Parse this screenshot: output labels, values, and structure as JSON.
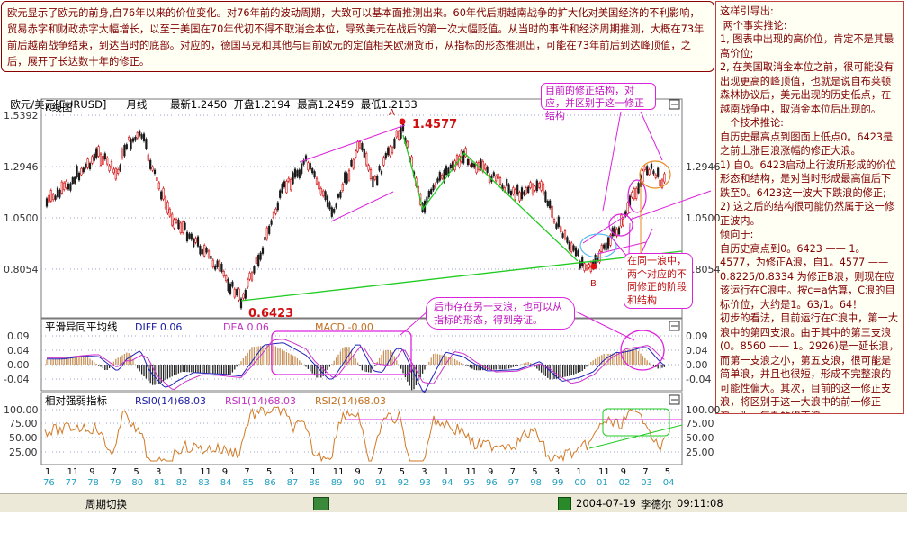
{
  "top_note": "欧元显示了欧元的前身,自76年以来的价位变化。对76年前的波动周期，大致可以基本面推测出来。60年代后期越南战争的扩大化对美国经济的不利影响，贸易赤字和财政赤字大幅增长，以至于美国在70年代初不得不取消金本位，导致美元在战后的第一次大幅贬值。从当时的事件和经济周期推测，大概在73年前后越南战争结束，到达当时的底部。对应的，德国马克和其他与目前欧元的定值相关欧洲货币，从指标的形态推测出，可能在73年前后到达峰顶值，之后，展开了长达数十年的修正。",
  "right_note": "这样引导出:\n 两个事实推论:\n1, 图表中出现的高价位，肯定不是其最高价位;\n2, 在美国取消金本位之前，很可能没有出现更高的峰顶值，也就是说自布莱顿森林协议后，美元出现的历史低点，在越南战争中，取消金本位后出现的。\n一个技术推论:\n自历史最高点到图面上低点0。6423是之前上涨巨浪涨幅的修正大浪。\n1) 自0。6423启动上行波所形成的价位形态和结构，是对当时形成最高值后下跌至0。6423这一波大下跌浪的修正;\n2) 这之后的结构很可能仍然属于这一修正波内。\n倾向于:\n自历史高点到0。6423 —— 1。4577，为修正A浪，自1。4577 —— 0.8225/0.8334 为修正B浪，则现在应该运行在C浪中。按c=a估算，C浪的目标价位，大约是1。63/1。64！\n初步的看法，目前运行在C浪中，第一大浪中的第四支浪。由于其中的第三支浪(0。8560 —— 1。2926)是一延长浪，而第一支浪之小，第五支浪，很可能是简单浪，并且也很短，形成不完整浪的可能性偏大。其次，目前的这一修正支浪，将区别于这一大浪中的前一修正浪，为一复杂的修正浪。",
  "info": {
    "symbol": "欧元/美元[EURUSD]",
    "period": "月线",
    "latest": "最新1.2450",
    "open": "开盘1.2194",
    "high": "最高1.2459",
    "low": "最低1.2133"
  },
  "kline_title": "K线图",
  "price_levels": [
    "1.5392",
    "1.2946",
    "1.0500",
    "0.8054"
  ],
  "peak_label": "1.4577",
  "low_label": "0.6423",
  "point_a": "A",
  "point_b": "B",
  "callout_1": "目前的修正结构，对应，并区别于这一修正结构",
  "callout_2": "在同一浪中，两个对应的不同修正的阶段和结构",
  "callout_3": "后市存在另一支浪，也可以从指标的形态，得到旁证。",
  "macd": {
    "title": "平滑异同平均线",
    "diff": "DIFF 0.06",
    "dea": "DEA 0.06",
    "macd": "MACD -0.00",
    "levels": [
      "0.09",
      "0.04",
      "0.00",
      "-0.04"
    ]
  },
  "rsi": {
    "title": "相对强弱指标",
    "rsi": "RSI0(14)68.03",
    "rsi1": "RSI1(14)68.03",
    "rsi2": "RSI2(14)68.03",
    "levels": [
      "100.00",
      "75.00",
      "50.00",
      "25.00"
    ]
  },
  "x_months": [
    "1",
    "11",
    "9",
    "7",
    "5",
    "3",
    "1",
    "11",
    "9",
    "7",
    "5",
    "3",
    "1",
    "11",
    "9",
    "7",
    "5",
    "3",
    "1",
    "11",
    "9",
    "7",
    "5",
    "3",
    "1",
    "11",
    "9",
    "7",
    "5"
  ],
  "x_years": [
    "76",
    "77",
    "78",
    "79",
    "80",
    "81",
    "82",
    "83",
    "84",
    "85",
    "86",
    "87",
    "88",
    "89",
    "90",
    "91",
    "92",
    "93",
    "94",
    "95",
    "96",
    "97",
    "98",
    "99",
    "00",
    "01",
    "02",
    "03",
    "04"
  ],
  "status": {
    "switch": "周期切换",
    "datetime": "2004-07-19",
    "user": "李德尔",
    "time": "09:11:08"
  },
  "colors": {
    "up": "#d10000",
    "down": "#1a1a1a",
    "note_text": "#800000",
    "green_line": "#22cc22",
    "magenta": "#dd22dd",
    "orange_curve": "#d27a26"
  }
}
